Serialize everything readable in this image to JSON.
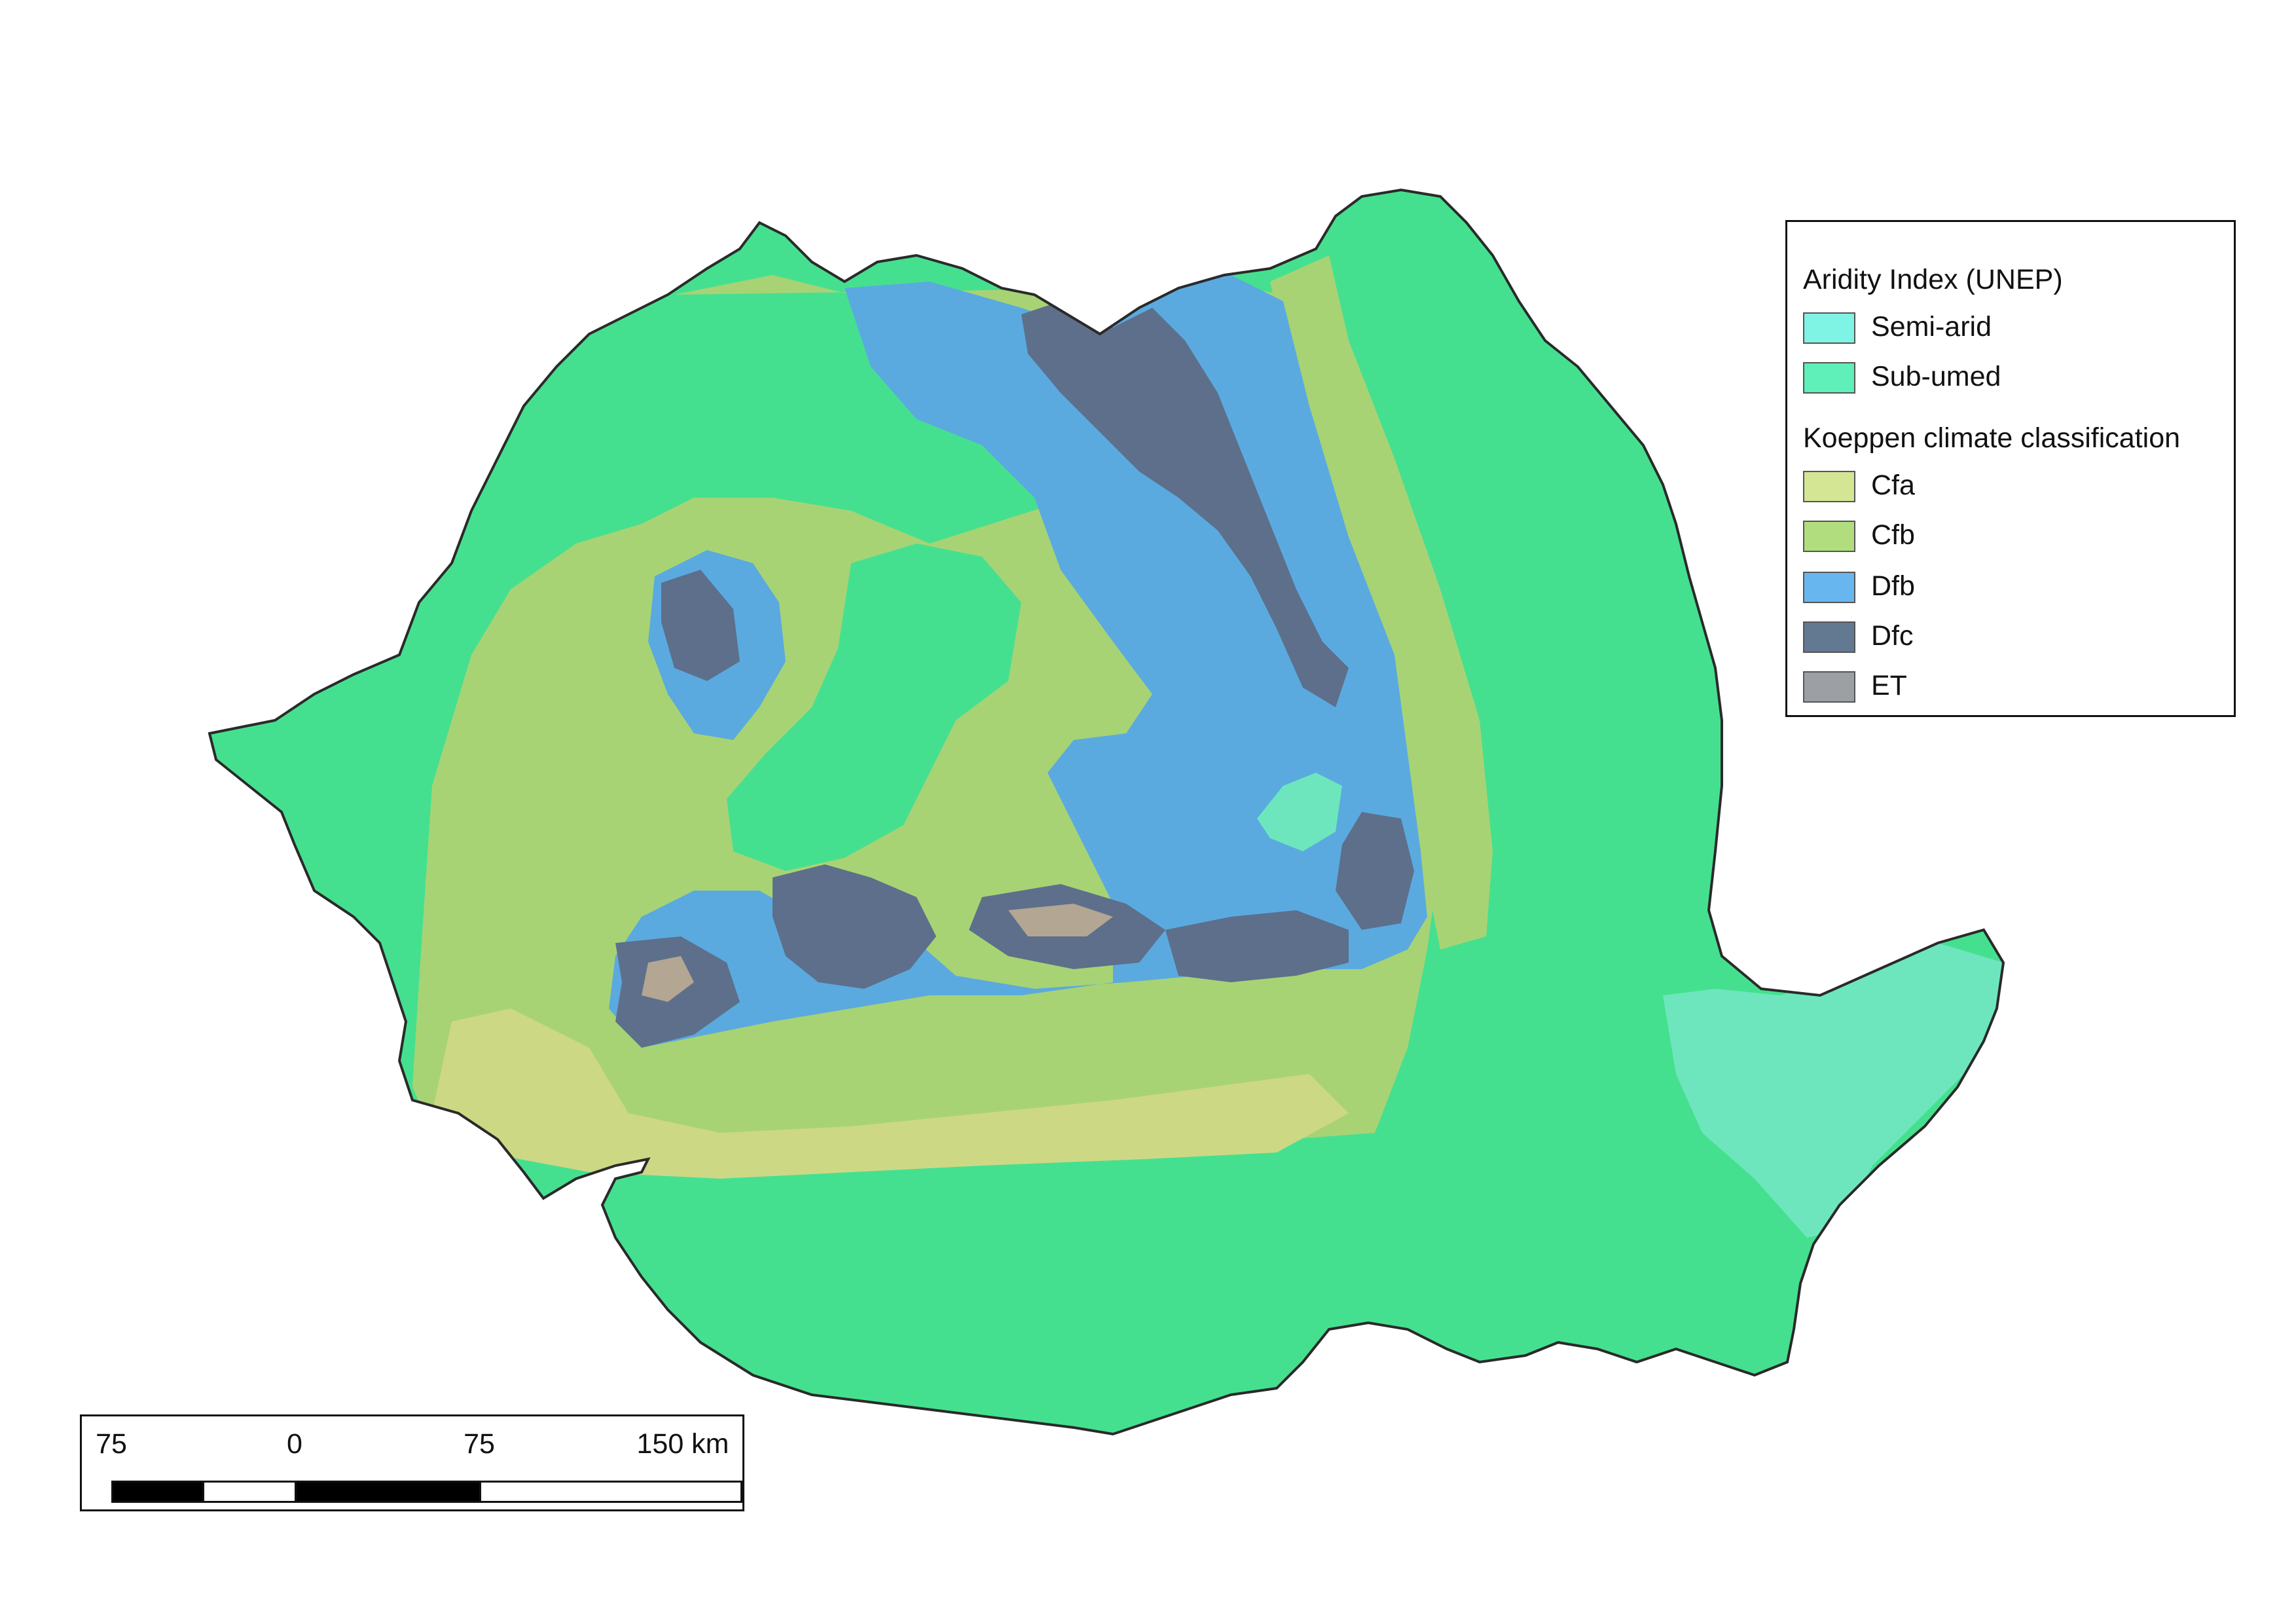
{
  "map": {
    "region_colors": {
      "sub_umed": "#45e08f",
      "semi_arid": "#6ee6bd",
      "cfa": "#cdd884",
      "cfb": "#a8d374",
      "dfb": "#5aaae0",
      "dfc": "#5d6f8a",
      "et": "#b3a692",
      "border": "#2a2a2a"
    }
  },
  "legend": {
    "aridity_title": "Aridity Index (UNEP)",
    "aridity_items": [
      {
        "label": "Semi-arid",
        "color": "#7ff3e4"
      },
      {
        "label": "Sub-umed",
        "color": "#5ef0b8"
      }
    ],
    "koeppen_title": "Koeppen climate classification",
    "koeppen_items": [
      {
        "label": "Cfa",
        "color": "#d4e693"
      },
      {
        "label": "Cfb",
        "color": "#b2dd7f"
      },
      {
        "label": "Dfb",
        "color": "#67b6f0"
      },
      {
        "label": "Dfc",
        "color": "#637891"
      },
      {
        "label": "ET",
        "color": "#9c9fa3"
      }
    ]
  },
  "scalebar": {
    "ticks": [
      "75",
      "0",
      "75",
      "150 km"
    ],
    "unit": "km"
  }
}
